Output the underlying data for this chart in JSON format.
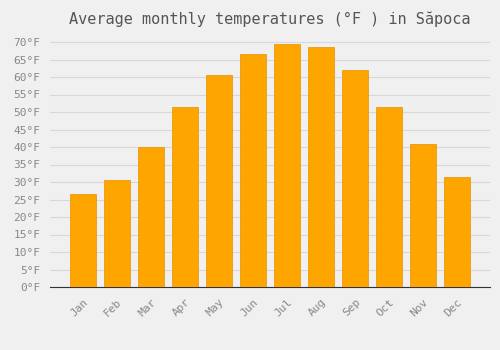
{
  "title": "Average monthly temperatures (°F ) in Săpoca",
  "months": [
    "Jan",
    "Feb",
    "Mar",
    "Apr",
    "May",
    "Jun",
    "Jul",
    "Aug",
    "Sep",
    "Oct",
    "Nov",
    "Dec"
  ],
  "values": [
    26.5,
    30.5,
    40.0,
    51.5,
    60.5,
    66.5,
    69.5,
    68.5,
    62.0,
    51.5,
    41.0,
    31.5
  ],
  "bar_color": "#FFA500",
  "bar_edge_color": "#E69000",
  "background_color": "#f0f0f0",
  "grid_color": "#d8d8d8",
  "ylim": [
    0,
    72
  ],
  "yticks": [
    0,
    5,
    10,
    15,
    20,
    25,
    30,
    35,
    40,
    45,
    50,
    55,
    60,
    65,
    70
  ],
  "title_fontsize": 11,
  "tick_fontsize": 8,
  "tick_font_color": "#888888",
  "title_color": "#555555",
  "font_family": "monospace"
}
